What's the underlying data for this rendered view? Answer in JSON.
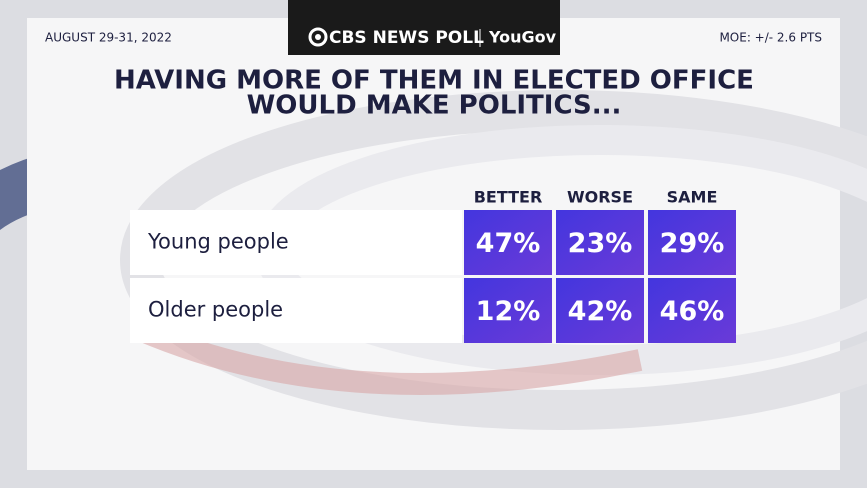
{
  "header": {
    "date": "AUGUST 29-31, 2022",
    "logo": "CBS NEWS POLL",
    "partner": "YouGov",
    "moe": "MOE: +/- 2.6 PTS"
  },
  "title": [
    "HAVING MORE OF THEM IN ELECTED OFFICE",
    "WOULD MAKE POLITICS..."
  ],
  "table": {
    "columns": [
      "BETTER",
      "WORSE",
      "SAME"
    ],
    "rows": [
      [
        "Young people",
        "47%",
        "23%",
        "29%"
      ],
      [
        "Older people",
        "12%",
        "42%",
        "46%"
      ]
    ]
  }
}
